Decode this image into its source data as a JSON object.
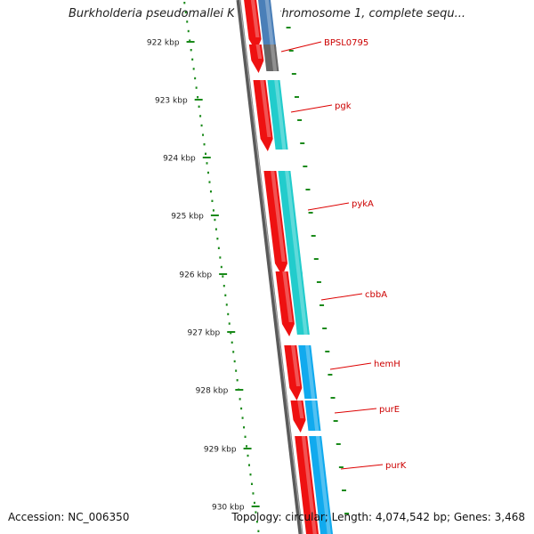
{
  "title": "Burkholderia pseudomallei K96243 chromosome 1, complete sequ...",
  "footer": {
    "accession": "Accession: NC_006350",
    "summary": "Topology: circular; Length: 4,074,542 bp; Genes: 3,468"
  },
  "scale": {
    "ticks": [
      "922 kbp",
      "923 kbp",
      "924 kbp",
      "925 kbp",
      "926 kbp",
      "927 kbp",
      "928 kbp",
      "929 kbp",
      "930 kbp"
    ]
  },
  "genes": [
    {
      "label": "BPSL0795"
    },
    {
      "label": "pgk"
    },
    {
      "label": "pykA"
    },
    {
      "label": "cbbA"
    },
    {
      "label": "hemH"
    },
    {
      "label": "purE"
    },
    {
      "label": "purK"
    }
  ],
  "colors": {
    "backbone": "#7a7a7a",
    "tick": "#1a8a1a",
    "gene_red": "#ee1111",
    "gene_cyan": "#22cccc",
    "gene_blue": "#11aaee",
    "gene_steel": "#4a7fb8",
    "gene_gray": "#666666",
    "label": "#cc0000",
    "label_line": "#dd0000"
  }
}
